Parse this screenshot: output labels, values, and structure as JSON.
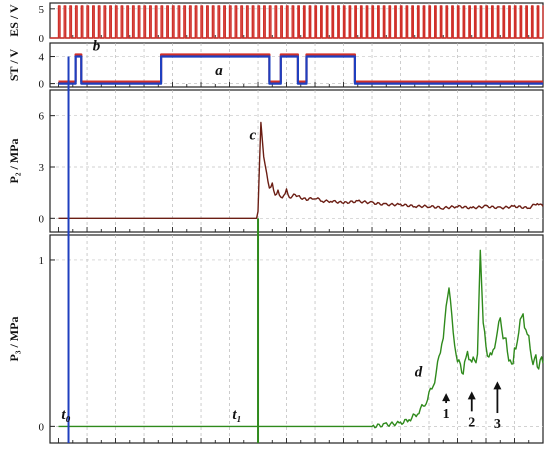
{
  "chart_data": [
    {
      "id": "es",
      "type": "line",
      "ylabel": "ES / V",
      "yticks": [
        "0",
        "5"
      ],
      "ylim": [
        0,
        6
      ],
      "series": [
        {
          "color": "#d0302a",
          "pulse_period": 0.2,
          "high": 5.5,
          "low": 0
        }
      ]
    },
    {
      "id": "st",
      "type": "line",
      "ylabel": "ST / V",
      "yticks": [
        "0",
        "4"
      ],
      "ylim": [
        -0.5,
        6
      ],
      "annotations": [
        {
          "text": "b",
          "x": 1.2,
          "y": 4.9
        },
        {
          "text": "a",
          "x": 5.5,
          "y": 1.3
        }
      ],
      "series": [
        {
          "color": "#d0302a",
          "points": [
            [
              0.0,
              0.3
            ],
            [
              0.6,
              0.3
            ],
            [
              0.6,
              4.3
            ],
            [
              0.8,
              4.3
            ],
            [
              0.8,
              0.3
            ],
            [
              3.6,
              0.3
            ],
            [
              3.6,
              4.3
            ],
            [
              7.4,
              4.3
            ],
            [
              7.4,
              0.3
            ],
            [
              7.8,
              0.3
            ],
            [
              7.8,
              4.3
            ],
            [
              8.4,
              4.3
            ],
            [
              8.4,
              0.3
            ],
            [
              8.7,
              0.3
            ],
            [
              8.7,
              4.3
            ],
            [
              10.4,
              4.3
            ],
            [
              10.4,
              0.3
            ],
            [
              17.0,
              0.3
            ]
          ]
        },
        {
          "color": "#1f3fbf",
          "points": [
            [
              0.0,
              0.0
            ],
            [
              0.6,
              0.0
            ],
            [
              0.6,
              4.0
            ],
            [
              0.8,
              4.0
            ],
            [
              0.8,
              0.0
            ],
            [
              3.6,
              0.0
            ],
            [
              3.6,
              4.0
            ],
            [
              7.4,
              4.0
            ],
            [
              7.4,
              0.0
            ],
            [
              7.8,
              0.0
            ],
            [
              7.8,
              4.0
            ],
            [
              8.4,
              4.0
            ],
            [
              8.4,
              0.0
            ],
            [
              8.7,
              0.0
            ],
            [
              8.7,
              4.0
            ],
            [
              10.4,
              4.0
            ],
            [
              10.4,
              0.0
            ],
            [
              17.0,
              0.0
            ]
          ]
        }
      ]
    },
    {
      "id": "p2",
      "type": "line",
      "ylabel": "P₂ / MPa",
      "yticks": [
        "0",
        "3",
        "6"
      ],
      "ylim": [
        -0.8,
        7.5
      ],
      "annotations": [
        {
          "text": "c",
          "x": 6.7,
          "y": 4.6
        }
      ],
      "series": [
        {
          "color": "#6b1e14",
          "points": [
            [
              0.0,
              0.0
            ],
            [
              6.95,
              0.0
            ],
            [
              7.0,
              0.4
            ],
            [
              7.05,
              3.2
            ],
            [
              7.1,
              5.6
            ],
            [
              7.2,
              3.6
            ],
            [
              7.3,
              2.6
            ],
            [
              7.4,
              1.7
            ],
            [
              7.5,
              2.0
            ],
            [
              7.6,
              1.3
            ],
            [
              7.7,
              1.6
            ],
            [
              7.8,
              1.2
            ],
            [
              7.9,
              1.3
            ],
            [
              8.0,
              1.7
            ],
            [
              8.1,
              1.2
            ],
            [
              8.3,
              1.4
            ],
            [
              8.5,
              1.2
            ],
            [
              8.7,
              1.1
            ],
            [
              9.0,
              1.2
            ],
            [
              9.3,
              1.0
            ],
            [
              9.6,
              1.0
            ],
            [
              10.0,
              0.9
            ],
            [
              10.5,
              1.0
            ],
            [
              11.0,
              0.9
            ],
            [
              11.5,
              0.8
            ],
            [
              12.0,
              0.8
            ],
            [
              12.5,
              0.7
            ],
            [
              13.0,
              0.7
            ],
            [
              13.5,
              0.6
            ],
            [
              14.0,
              0.7
            ],
            [
              14.5,
              0.6
            ],
            [
              15.0,
              0.7
            ],
            [
              15.5,
              0.6
            ],
            [
              16.0,
              0.7
            ],
            [
              16.5,
              0.6
            ],
            [
              16.8,
              0.9
            ],
            [
              17.0,
              0.7
            ]
          ]
        }
      ]
    },
    {
      "id": "p3",
      "type": "line",
      "ylabel": "P₃ / MPa",
      "yticks": [
        "0",
        "1"
      ],
      "ylim": [
        -0.1,
        1.15
      ],
      "annotations": [
        {
          "text": "d",
          "x": 12.5,
          "y": 0.3
        },
        {
          "text": "t₀",
          "x": 0.1,
          "y": 0.045
        },
        {
          "text": "t₁",
          "x": 6.1,
          "y": 0.045
        },
        {
          "text": "1",
          "x": 13.6,
          "y": 0.05,
          "arrow_top": 0.2
        },
        {
          "text": "2",
          "x": 14.5,
          "y": 0.0,
          "arrow_top": 0.21
        },
        {
          "text": "3",
          "x": 15.4,
          "y": -0.01,
          "arrow_top": 0.27
        }
      ],
      "series": [
        {
          "color": "#2f8a1c",
          "points": [
            [
              0.0,
              0.0
            ],
            [
              11.0,
              0.0
            ],
            [
              11.5,
              0.01
            ],
            [
              12.0,
              0.02
            ],
            [
              12.3,
              0.04
            ],
            [
              12.6,
              0.08
            ],
            [
              12.9,
              0.15
            ],
            [
              13.2,
              0.28
            ],
            [
              13.5,
              0.55
            ],
            [
              13.7,
              0.85
            ],
            [
              13.85,
              0.55
            ],
            [
              14.0,
              0.4
            ],
            [
              14.2,
              0.32
            ],
            [
              14.35,
              0.45
            ],
            [
              14.5,
              0.38
            ],
            [
              14.7,
              0.42
            ],
            [
              14.8,
              1.04
            ],
            [
              14.9,
              0.6
            ],
            [
              15.05,
              0.45
            ],
            [
              15.2,
              0.4
            ],
            [
              15.35,
              0.55
            ],
            [
              15.5,
              0.62
            ],
            [
              15.7,
              0.5
            ],
            [
              15.9,
              0.35
            ],
            [
              16.0,
              0.45
            ],
            [
              16.15,
              0.58
            ],
            [
              16.3,
              0.67
            ],
            [
              16.45,
              0.55
            ],
            [
              16.6,
              0.42
            ],
            [
              16.8,
              0.38
            ],
            [
              17.0,
              0.38
            ]
          ]
        }
      ]
    }
  ],
  "markers": [
    {
      "id": "t0",
      "x": 0.35,
      "color": "#1f3fbf"
    },
    {
      "id": "t1",
      "x": 7.0,
      "color": "#2f8a1c"
    }
  ],
  "x_range": [
    -0.3,
    17.0
  ]
}
